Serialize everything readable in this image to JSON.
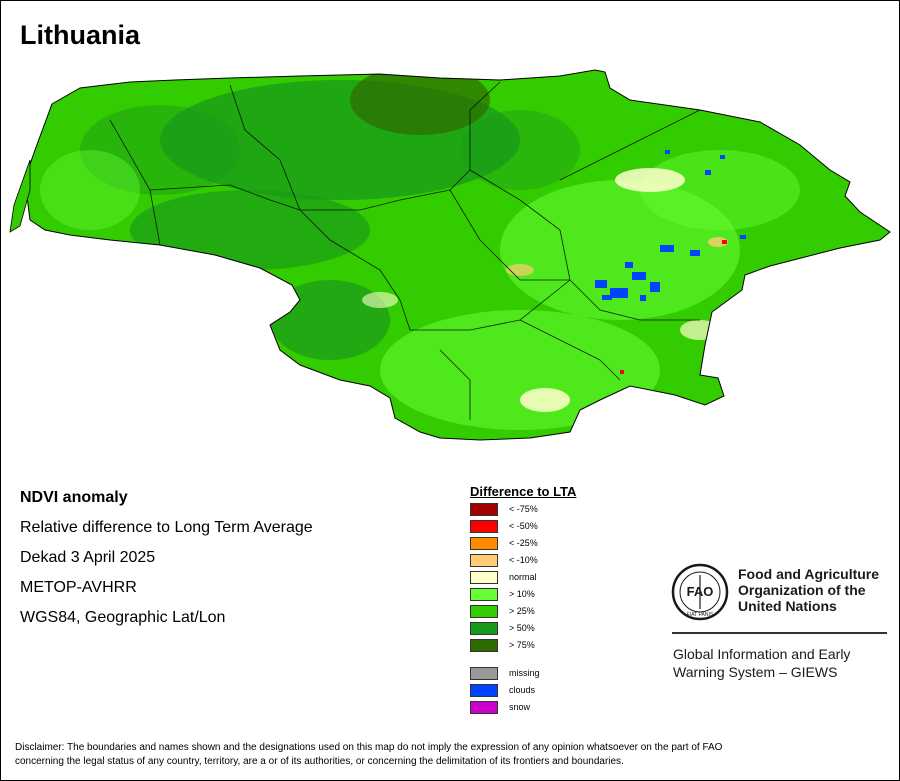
{
  "map": {
    "title": "Lithuania",
    "region": "Lithuania"
  },
  "info": {
    "product": "NDVI anomaly",
    "description": "Relative difference to Long Term Average",
    "period": "Dekad 3 April 2025",
    "sensor": "METOP-AVHRR",
    "projection": "WGS84, Geographic Lat/Lon"
  },
  "legend": {
    "title": "Difference to LTA",
    "classes": [
      {
        "label": "< -75%",
        "color": "#a50000"
      },
      {
        "label": "< -50%",
        "color": "#ff0000"
      },
      {
        "label": "< -25%",
        "color": "#ff8c00"
      },
      {
        "label": "< -10%",
        "color": "#ffcc73"
      },
      {
        "label": "normal",
        "color": "#ffffcc"
      },
      {
        "label": "> 10%",
        "color": "#66ff33"
      },
      {
        "label": "> 25%",
        "color": "#33cc00"
      },
      {
        "label": "> 50%",
        "color": "#199919"
      },
      {
        "label": "> 75%",
        "color": "#2e6b00"
      }
    ],
    "extra": [
      {
        "label": "missing",
        "color": "#999999"
      },
      {
        "label": "clouds",
        "color": "#0044ff"
      },
      {
        "label": "snow",
        "color": "#cc00cc"
      }
    ]
  },
  "organization": {
    "name_line1": "Food and Agriculture",
    "name_line2": "Organization of the",
    "name_line3": "United Nations",
    "logo_letters": "FAO",
    "logo_motto": "FIAT PANIS",
    "system_line1": "Global Information and Early",
    "system_line2": "Warning System – GIEWS"
  },
  "disclaimer": {
    "line1": "Disclaimer: The boundaries and names shown and the designations used on this map do not imply the expression of any opinion whatsoever on the part of FAO",
    "line2": "concerning the legal status of any country, territory, are a or of its authorities, or concerning the delimitation of its frontiers and boundaries."
  },
  "colors": {
    "map_base": "#33cc00",
    "map_dark": "#199919",
    "map_light": "#66ff33",
    "border": "#000000"
  }
}
